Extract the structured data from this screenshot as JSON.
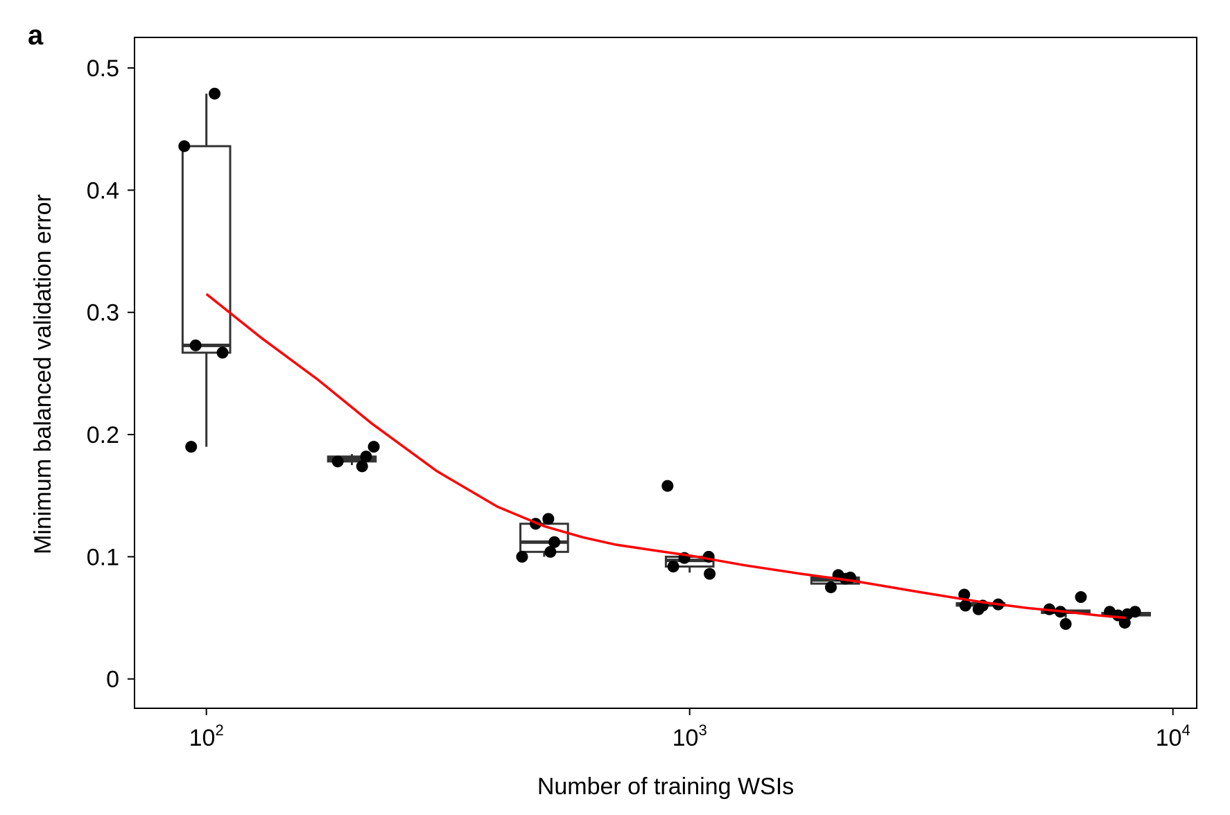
{
  "panel_label": "a",
  "chart_data": {
    "type": "box",
    "xlabel": "Number of training WSIs",
    "ylabel": "Minimum balanced validation error",
    "x_scale": "log10",
    "xlim": [
      71,
      11200
    ],
    "ylim": [
      -0.024,
      0.525
    ],
    "x_ticks": [
      {
        "value": 100,
        "base": "10",
        "exp": "2"
      },
      {
        "value": 1000,
        "base": "10",
        "exp": "3"
      },
      {
        "value": 10000,
        "base": "10",
        "exp": "4"
      }
    ],
    "y_ticks": [
      {
        "value": 0,
        "label": "0"
      },
      {
        "value": 0.1,
        "label": "0.1"
      },
      {
        "value": 0.2,
        "label": "0.2"
      },
      {
        "value": 0.3,
        "label": "0.3"
      },
      {
        "value": 0.4,
        "label": "0.4"
      },
      {
        "value": 0.5,
        "label": "0.5"
      }
    ],
    "grid": false,
    "colors": {
      "points": "#000000",
      "boxes": "#333333",
      "fit": "#ff0000"
    },
    "boxes": [
      {
        "x": 100,
        "whisker_low": 0.19,
        "q1": 0.267,
        "median": 0.273,
        "q3": 0.436,
        "whisker_high": 0.479
      },
      {
        "x": 200,
        "whisker_low": 0.175,
        "q1": 0.178,
        "median": 0.18,
        "q3": 0.182,
        "whisker_high": 0.184
      },
      {
        "x": 500,
        "whisker_low": 0.1,
        "q1": 0.104,
        "median": 0.112,
        "q3": 0.127,
        "whisker_high": 0.131
      },
      {
        "x": 1000,
        "whisker_low": 0.087,
        "q1": 0.092,
        "median": 0.097,
        "q3": 0.1,
        "whisker_high": 0.101
      },
      {
        "x": 2000,
        "whisker_low": 0.076,
        "q1": 0.078,
        "median": 0.081,
        "q3": 0.083,
        "whisker_high": 0.085
      },
      {
        "x": 4000,
        "whisker_low": 0.058,
        "q1": 0.06,
        "median": 0.061,
        "q3": 0.062,
        "whisker_high": 0.063
      },
      {
        "x": 6000,
        "whisker_low": 0.05,
        "q1": 0.054,
        "median": 0.055,
        "q3": 0.056,
        "whisker_high": 0.057
      },
      {
        "x": 8000,
        "whisker_low": 0.05,
        "q1": 0.052,
        "median": 0.053,
        "q3": 0.054,
        "whisker_high": 0.055
      }
    ],
    "points": [
      {
        "x": 90,
        "y": 0.436
      },
      {
        "x": 104,
        "y": 0.479
      },
      {
        "x": 95,
        "y": 0.273
      },
      {
        "x": 108,
        "y": 0.267
      },
      {
        "x": 93,
        "y": 0.19
      },
      {
        "x": 187,
        "y": 0.178
      },
      {
        "x": 210,
        "y": 0.174
      },
      {
        "x": 214,
        "y": 0.182
      },
      {
        "x": 222,
        "y": 0.19
      },
      {
        "x": 450,
        "y": 0.1
      },
      {
        "x": 480,
        "y": 0.127
      },
      {
        "x": 510,
        "y": 0.131
      },
      {
        "x": 515,
        "y": 0.104
      },
      {
        "x": 525,
        "y": 0.112
      },
      {
        "x": 900,
        "y": 0.158
      },
      {
        "x": 925,
        "y": 0.092
      },
      {
        "x": 975,
        "y": 0.099
      },
      {
        "x": 1095,
        "y": 0.1
      },
      {
        "x": 1100,
        "y": 0.086
      },
      {
        "x": 1960,
        "y": 0.075
      },
      {
        "x": 2030,
        "y": 0.085
      },
      {
        "x": 2100,
        "y": 0.082
      },
      {
        "x": 2150,
        "y": 0.083
      },
      {
        "x": 3700,
        "y": 0.069
      },
      {
        "x": 3720,
        "y": 0.06
      },
      {
        "x": 3960,
        "y": 0.057
      },
      {
        "x": 4040,
        "y": 0.06
      },
      {
        "x": 4350,
        "y": 0.061
      },
      {
        "x": 5550,
        "y": 0.057
      },
      {
        "x": 5850,
        "y": 0.055
      },
      {
        "x": 6000,
        "y": 0.045
      },
      {
        "x": 6450,
        "y": 0.067
      },
      {
        "x": 7400,
        "y": 0.055
      },
      {
        "x": 7700,
        "y": 0.052
      },
      {
        "x": 7950,
        "y": 0.046
      },
      {
        "x": 8050,
        "y": 0.053
      },
      {
        "x": 8350,
        "y": 0.055
      }
    ],
    "fit_curve": {
      "x": [
        100,
        130,
        170,
        220,
        300,
        400,
        500,
        600,
        700,
        850,
        1000,
        1300,
        1700,
        2200,
        3000,
        4000,
        5000,
        6000,
        7000,
        8000
      ],
      "y": [
        0.315,
        0.279,
        0.245,
        0.209,
        0.17,
        0.141,
        0.125,
        0.116,
        0.11,
        0.105,
        0.101,
        0.093,
        0.086,
        0.08,
        0.071,
        0.063,
        0.058,
        0.055,
        0.052,
        0.05
      ]
    }
  }
}
